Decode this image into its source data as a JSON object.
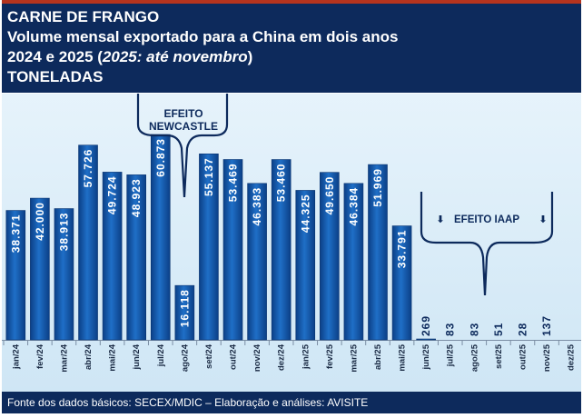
{
  "header": {
    "line1": "CARNE DE FRANGO",
    "line2": "Volume mensal exportado para a China em dois anos",
    "line3_prefix": "2024 e 2025 (",
    "line3_italic": "2025: até novembro",
    "line3_suffix": ")",
    "line4": "TONELADAS"
  },
  "annotations": {
    "newcastle_line1": "EFEITO",
    "newcastle_line2": "NEWCASTLE",
    "iaap": "EFEITO IAAP",
    "arrow_glyph": "🡇"
  },
  "footer": {
    "text": "Fonte dos dados básicos: SECEX/MDIC – Elaboração e análises: AVISITE"
  },
  "colors": {
    "header_bg": "#0d2a5c",
    "bar": "#1f6fc7",
    "bar_dark": "#0b3f86",
    "plot_bg": "#d9ecf8"
  },
  "chart_data": {
    "type": "bar",
    "categories": [
      "jan/24",
      "fev/24",
      "mar/24",
      "abr/24",
      "mai/24",
      "jun/24",
      "jul/24",
      "ago/24",
      "set/24",
      "out/24",
      "nov/24",
      "dez/24",
      "jan/25",
      "fev/25",
      "mar/25",
      "abr/25",
      "mai/25",
      "jun/25",
      "jul/25",
      "ago/25",
      "set/25",
      "out/25",
      "nov/25",
      "dez/25"
    ],
    "values": [
      38371,
      42000,
      38913,
      57726,
      49724,
      48923,
      60873,
      16118,
      55137,
      53469,
      46383,
      53460,
      44325,
      49650,
      46384,
      51969,
      33791,
      269,
      83,
      83,
      51,
      28,
      137,
      null
    ],
    "labels": [
      "38.371",
      "42.000",
      "38.913",
      "57.726",
      "49.724",
      "48.923",
      "60.873",
      "16.118",
      "55.137",
      "53.469",
      "46.383",
      "53.460",
      "44.325",
      "49.650",
      "46.384",
      "51.969",
      "33.791",
      "269",
      "83",
      "83",
      "51",
      "28",
      "137",
      ""
    ],
    "ylim": [
      0,
      73000
    ],
    "grid": false,
    "legend": "none"
  }
}
